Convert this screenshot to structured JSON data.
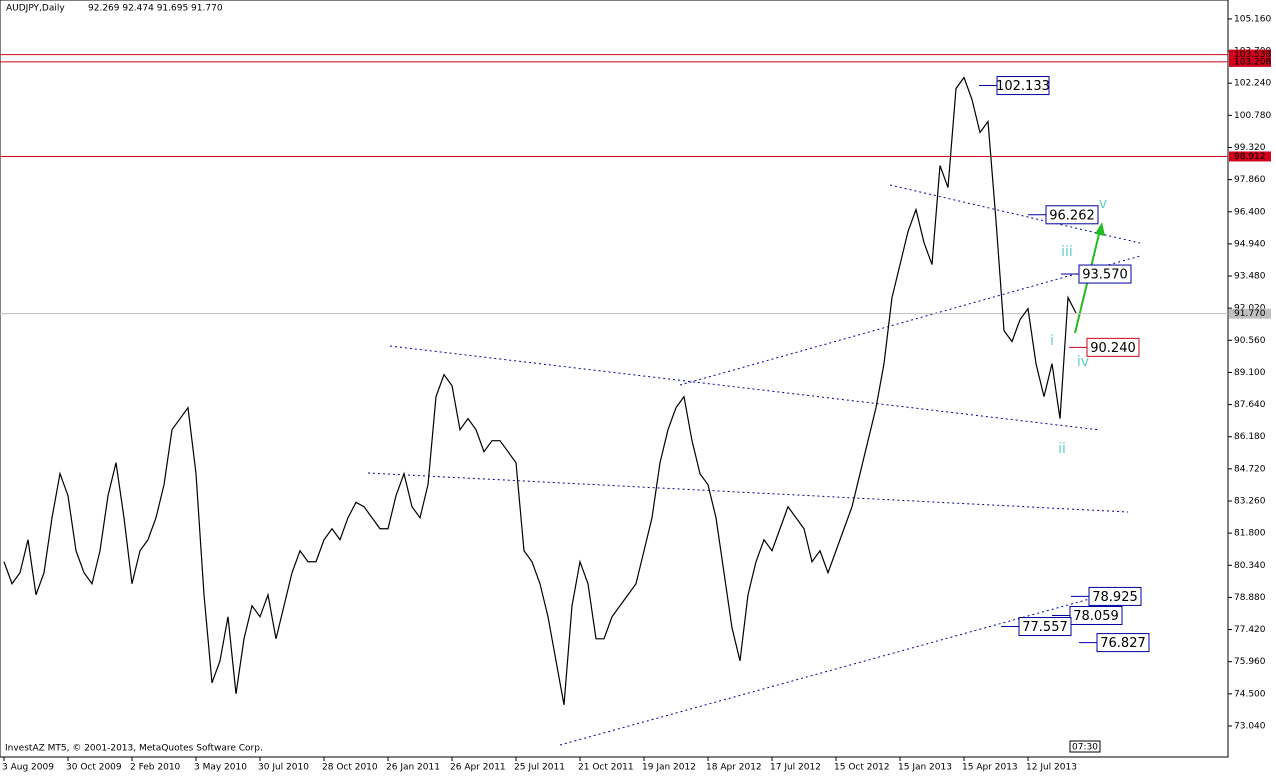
{
  "chart_data": {
    "type": "line",
    "title": "AUDJPY,Daily",
    "ohlc": "92.269 92.474 91.695 91.770",
    "footer": "InvestAZ MT5, © 2001-2013, MetaQuotes Software Corp.",
    "time": "07:30",
    "x_labels": [
      "3 Aug 2009",
      "30 Oct 2009",
      "2 Feb 2010",
      "3 May 2010",
      "30 Jul 2010",
      "28 Oct 2010",
      "26 Jan 2011",
      "26 Apr 2011",
      "25 Jul 2011",
      "21 Oct 2011",
      "19 Jan 2012",
      "18 Apr 2012",
      "17 Jul 2012",
      "15 Oct 2012",
      "15 Jan 2013",
      "15 Apr 2013",
      "12 Jul 2013"
    ],
    "series": [
      {
        "color": "#000000",
        "values": [
          80.5,
          79.5,
          80.0,
          81.5,
          79.0,
          80.0,
          82.5,
          84.5,
          83.5,
          81.0,
          80.0,
          79.5,
          81.0,
          83.5,
          85.0,
          82.5,
          79.5,
          81.0,
          81.5,
          82.5,
          84.0,
          86.5,
          87.0,
          87.5,
          84.5,
          79.0,
          75.0,
          76.0,
          78.0,
          74.5,
          77.0,
          78.5,
          78.0,
          79.0,
          77.0,
          78.5,
          80.0,
          81.0,
          80.5,
          80.5,
          81.5,
          82.0,
          81.5,
          82.5,
          83.2,
          83.0,
          82.5,
          82.0,
          82.0,
          83.5,
          84.5,
          83.0,
          82.5,
          84.0,
          88.0,
          89.0,
          88.5,
          86.5,
          87.0,
          86.5,
          85.5,
          86.0,
          86.0,
          85.5,
          85.0,
          81.0,
          80.5,
          79.5,
          78.0,
          76.0,
          74.0,
          78.5,
          80.5,
          79.5,
          77.0,
          77.0,
          78.0,
          78.5,
          79.0,
          79.5,
          81.0,
          82.5,
          85.0,
          86.5,
          87.5,
          88.0,
          86.0,
          84.5,
          84.0,
          82.5,
          80.0,
          77.5,
          76.0,
          79.0,
          80.5,
          81.5,
          81.0,
          82.0,
          83.0,
          82.5,
          82.0,
          80.5,
          81.0,
          80.0,
          81.0,
          82.0,
          83.0,
          84.5,
          86.0,
          87.5,
          89.5,
          92.5,
          94.0,
          95.5,
          96.5,
          95.0,
          94.0,
          98.5,
          97.5,
          102.0,
          102.5,
          101.5,
          100.0,
          100.5,
          96.0,
          91.0,
          90.5,
          91.5,
          92.0,
          89.5,
          88.0,
          89.5,
          87.0,
          92.5,
          91.8
        ]
      }
    ],
    "ylim": [
      71.63,
      106.02
    ],
    "yticks": [
      {
        "value": 105.16,
        "label": "105.160"
      },
      {
        "value": 103.7,
        "label": "103.700"
      },
      {
        "value": 102.24,
        "label": "102.240"
      },
      {
        "value": 100.78,
        "label": "100.780"
      },
      {
        "value": 99.32,
        "label": "99.320"
      },
      {
        "value": 97.86,
        "label": "97.860"
      },
      {
        "value": 96.4,
        "label": "96.400"
      },
      {
        "value": 94.94,
        "label": "94.940"
      },
      {
        "value": 93.48,
        "label": "93.480"
      },
      {
        "value": 92.02,
        "label": "92.020"
      },
      {
        "value": 90.56,
        "label": "90.560"
      },
      {
        "value": 89.1,
        "label": "89.100"
      },
      {
        "value": 87.64,
        "label": "87.640"
      },
      {
        "value": 86.18,
        "label": "86.180"
      },
      {
        "value": 84.72,
        "label": "84.720"
      },
      {
        "value": 83.26,
        "label": "83.260"
      },
      {
        "value": 81.8,
        "label": "81.800"
      },
      {
        "value": 80.34,
        "label": "80.340"
      },
      {
        "value": 78.88,
        "label": "78.880"
      },
      {
        "value": 77.42,
        "label": "77.420"
      },
      {
        "value": 75.96,
        "label": "75.960"
      },
      {
        "value": 74.5,
        "label": "74.500"
      },
      {
        "value": 73.04,
        "label": "73.040"
      }
    ],
    "levels": [
      {
        "value": 103.538,
        "label": "103.538"
      },
      {
        "value": 103.208,
        "label": "103.208"
      },
      {
        "value": 98.912,
        "label": "98.912"
      }
    ],
    "level_color": "#d0021b",
    "current": {
      "value": 91.77,
      "label": "91.770"
    },
    "annotations": [
      {
        "value": 102.133,
        "label": "102.133",
        "color": "#0000a0"
      },
      {
        "value": 96.262,
        "label": "96.262",
        "color": "#0000a0"
      },
      {
        "value": 93.57,
        "label": "93.570",
        "color": "#0000a0"
      },
      {
        "value": 90.24,
        "label": "90.240",
        "color": "#d0021b"
      },
      {
        "value": 78.925,
        "label": "78.925",
        "color": "#0000a0"
      },
      {
        "value": 78.059,
        "label": "78.059",
        "color": "#0000a0"
      },
      {
        "value": 77.557,
        "label": "77.557",
        "color": "#0000a0"
      },
      {
        "value": 76.827,
        "label": "76.827",
        "color": "#0000a0"
      }
    ],
    "wave_labels": [
      "v",
      "iii",
      "i",
      "iv",
      "ii"
    ]
  }
}
